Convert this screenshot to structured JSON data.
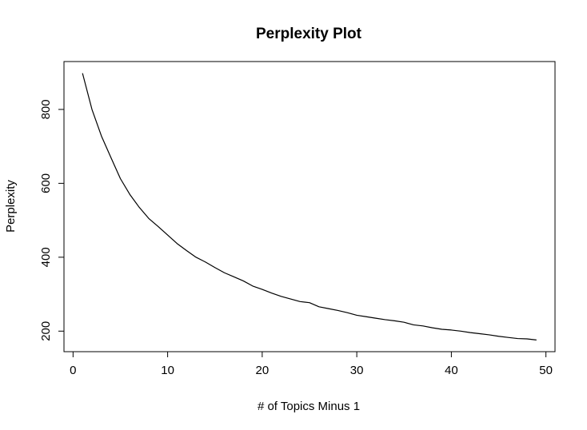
{
  "chart_data": {
    "type": "line",
    "title": "Perplexity Plot",
    "xlabel": "# of Topics Minus 1",
    "ylabel": "Perplexity",
    "xlim": [
      -0.96,
      50.96
    ],
    "ylim": [
      144.4,
      929.6
    ],
    "x_ticks": [
      0,
      10,
      20,
      30,
      40,
      50
    ],
    "y_ticks": [
      200,
      400,
      600,
      800
    ],
    "grid": false,
    "line_color": "#000000",
    "series": [
      {
        "x": [
          1,
          2,
          3,
          4,
          5,
          6,
          7,
          8,
          9,
          10,
          11,
          12,
          13,
          14,
          15,
          16,
          17,
          18,
          19,
          20,
          21,
          22,
          23,
          24,
          25,
          26,
          27,
          28,
          29,
          30,
          31,
          32,
          33,
          34,
          35,
          36,
          37,
          38,
          39,
          40,
          41,
          42,
          43,
          44,
          45,
          46,
          47,
          48,
          49
        ],
        "values": [
          898,
          800,
          728,
          670,
          613,
          570,
          535,
          505,
          483,
          460,
          437,
          418,
          400,
          387,
          372,
          358,
          347,
          336,
          322,
          313,
          303,
          294,
          287,
          280,
          277,
          266,
          261,
          256,
          250,
          243,
          239,
          235,
          231,
          228,
          224,
          217,
          214,
          209,
          205,
          203,
          200,
          196,
          193,
          190,
          186,
          183,
          180,
          179,
          176
        ]
      }
    ]
  }
}
